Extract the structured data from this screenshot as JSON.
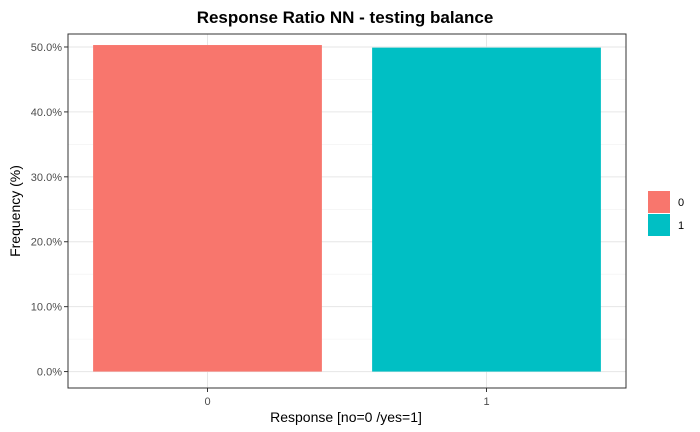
{
  "chart_data": {
    "type": "bar",
    "title": "Response Ratio NN - testing balance",
    "xlabel": "Response [no=0 /yes=1]",
    "ylabel": "Frequency (%)",
    "categories": [
      "0",
      "1"
    ],
    "values": [
      50.3,
      49.9
    ],
    "colors": [
      "#F8766D",
      "#00BFC4"
    ],
    "ylim": [
      0,
      52
    ],
    "yticks": [
      0,
      10,
      20,
      30,
      40,
      50
    ],
    "ytick_labels": [
      "0.0%",
      "10.0%",
      "20.0%",
      "30.0%",
      "40.0%",
      "50.0%"
    ],
    "grid": true,
    "legend": {
      "placement": "right",
      "entries": [
        {
          "label": "0",
          "color": "#F8766D"
        },
        {
          "label": "1",
          "color": "#00BFC4"
        }
      ]
    }
  }
}
